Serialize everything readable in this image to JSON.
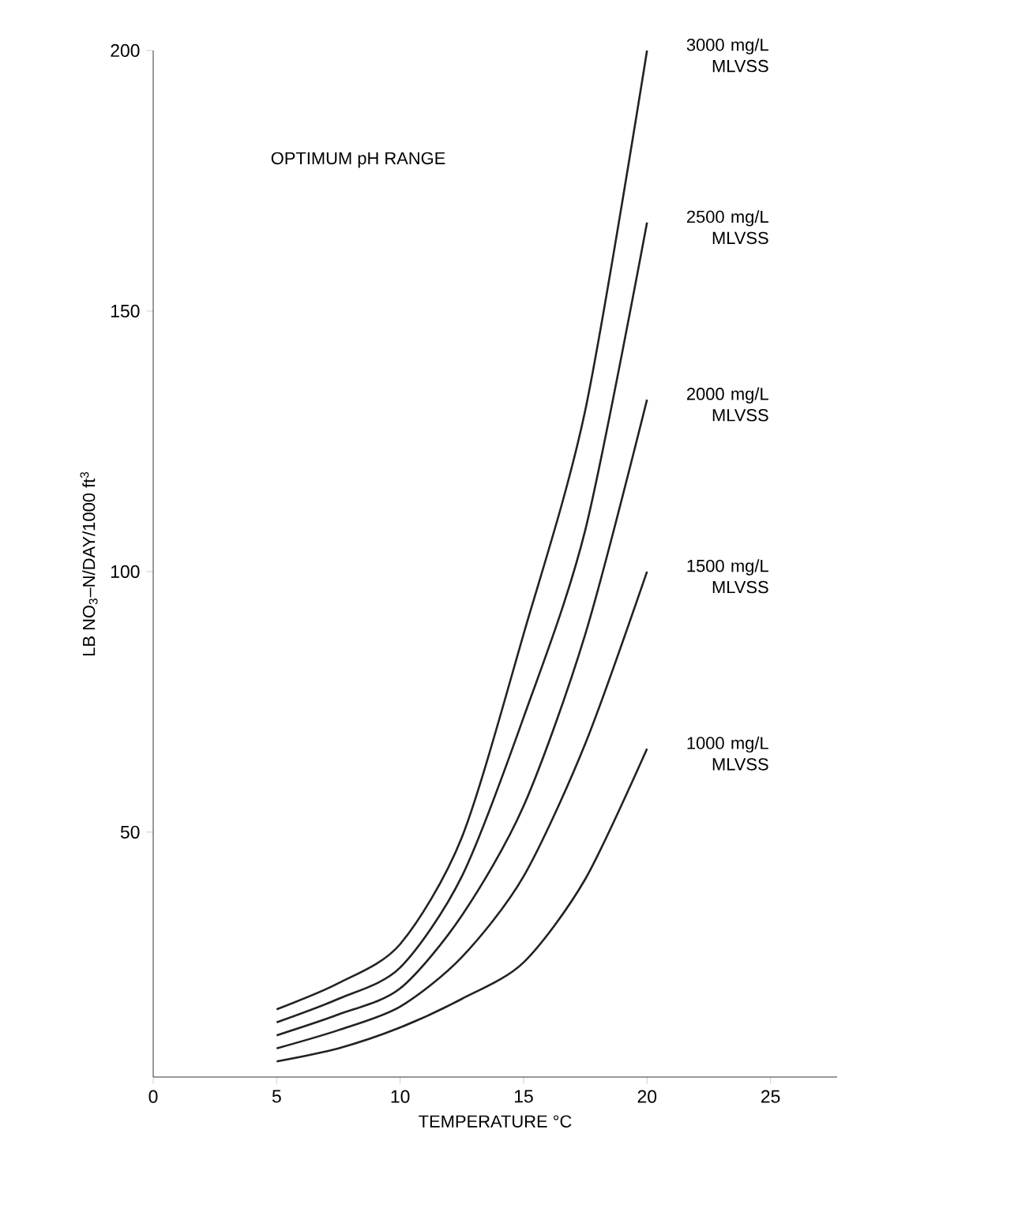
{
  "chart_data": {
    "type": "line",
    "xlabel": "TEMPERATURE °C",
    "ylabel": "LB NO$_{3}$–N/DAY/1000 ft$^{3}$",
    "x": [
      5,
      7.5,
      10,
      12.5,
      15,
      17.5,
      20
    ],
    "series": [
      {
        "name": "3000 mg/L MLVSS",
        "color": "#222222",
        "values": [
          16,
          21,
          28.5,
          49,
          88,
          131,
          200
        ]
      },
      {
        "name": "2500 mg/L MLVSS",
        "color": "#222222",
        "values": [
          13.5,
          18,
          24,
          41.5,
          72,
          108,
          167
        ]
      },
      {
        "name": "2000 mg/L MLVSS",
        "color": "#222222",
        "values": [
          11,
          15,
          20,
          34,
          55,
          88,
          133
        ]
      },
      {
        "name": "1500 mg/L MLVSS",
        "color": "#222222",
        "values": [
          8.5,
          12,
          16.5,
          26,
          41.5,
          67,
          100
        ]
      },
      {
        "name": "1000 mg/L MLVSS",
        "color": "#222222",
        "values": [
          6,
          8.5,
          12.5,
          18,
          25,
          41,
          66
        ]
      }
    ],
    "annotations": [
      "OPTIMUM pH RANGE"
    ],
    "xlim": [
      0,
      27.7
    ],
    "ylim": [
      3,
      200
    ],
    "xticks": [
      0,
      5,
      10,
      15,
      20,
      25
    ],
    "yticks": [
      50,
      100,
      150,
      200
    ],
    "marker": "none",
    "line_style": "solid"
  }
}
